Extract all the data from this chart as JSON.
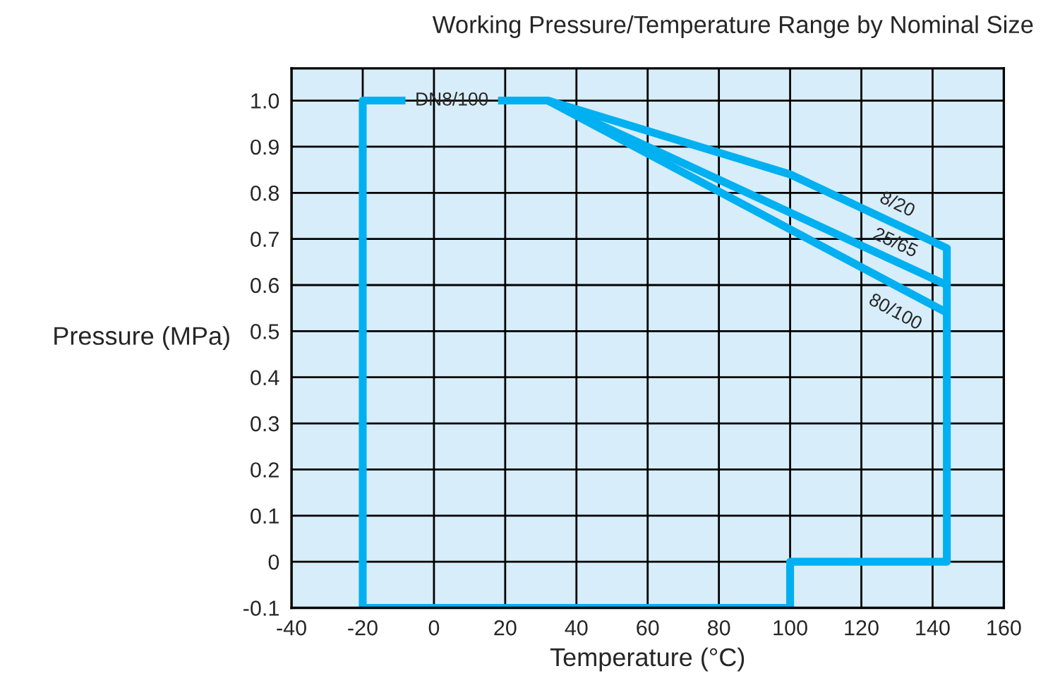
{
  "chart_data": {
    "type": "line",
    "title": "Working Pressure/Temperature Range by Nominal Size",
    "xlabel": "Temperature (°C)",
    "ylabel": "Pressure (MPa)",
    "series": [
      {
        "name": "DN8/100",
        "color": "#00b0f0",
        "x": [
          18,
          32,
          100,
          144,
          144,
          100,
          100,
          -20,
          -20,
          -8
        ],
        "values": [
          1.0,
          1.0,
          0.84,
          0.68,
          0,
          0,
          -0.1,
          -0.1,
          1.0,
          1.0
        ]
      },
      {
        "name": "25/65",
        "color": "#00b0f0",
        "x": [
          32,
          144
        ],
        "values": [
          1.0,
          0.6
        ]
      },
      {
        "name": "80/100",
        "color": "#00b0f0",
        "x": [
          32,
          144
        ],
        "values": [
          1.0,
          0.54
        ]
      }
    ],
    "annotations": [
      {
        "text": "8/20",
        "x": 130,
        "y": 0.731
      }
    ],
    "xlim": [
      -40,
      160
    ],
    "xticks": [
      -40,
      -20,
      0,
      20,
      40,
      60,
      80,
      100,
      120,
      140,
      160
    ],
    "ylim": [
      -0.1,
      1.07
    ],
    "yticks": [
      -0.1,
      0,
      0.1,
      0.2,
      0.3,
      0.4,
      0.5,
      0.6,
      0.7,
      0.8,
      0.9,
      {
        "value": 1,
        "label": "1.0"
      }
    ],
    "grid": true,
    "legend": false,
    "marker": "none",
    "line_style": "solid"
  }
}
